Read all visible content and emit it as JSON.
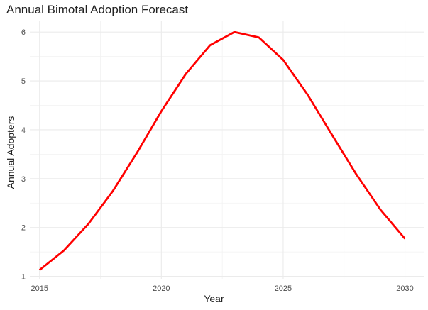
{
  "chart_data": {
    "type": "line",
    "title": "Annual Bimotal Adoption Forecast",
    "xlabel": "Year",
    "ylabel": "Annual Adopters",
    "x": [
      2015,
      2016,
      2017,
      2018,
      2019,
      2020,
      2021,
      2022,
      2023,
      2024,
      2025,
      2026,
      2027,
      2028,
      2029,
      2030
    ],
    "series": [
      {
        "values": [
          1.13,
          1.53,
          2.07,
          2.74,
          3.53,
          4.38,
          5.14,
          5.73,
          6.0,
          5.89,
          5.43,
          4.72,
          3.9,
          3.09,
          2.36,
          1.77
        ],
        "color": "#ff0000"
      }
    ],
    "xlim": [
      2014.6,
      2030.8
    ],
    "ylim": [
      0.95,
      6.22
    ],
    "xticks": [
      2015,
      2020,
      2025,
      2030
    ],
    "yticks": [
      1,
      2,
      3,
      4,
      5,
      6
    ],
    "grid": true
  }
}
